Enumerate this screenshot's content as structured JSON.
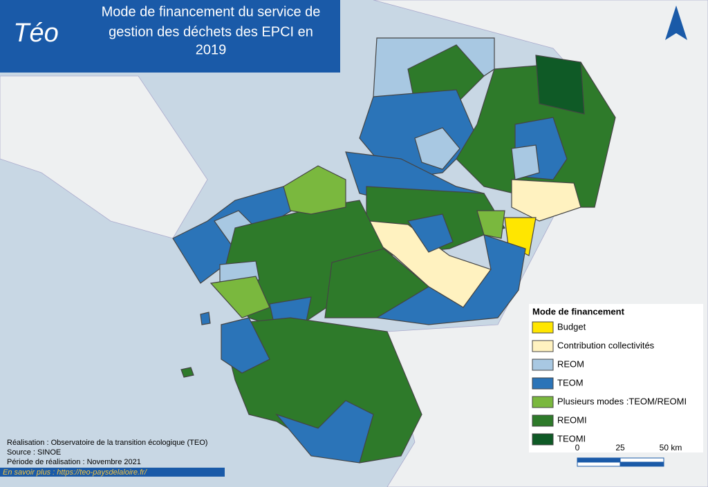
{
  "header": {
    "logo": "Téo",
    "title_lines": [
      "Mode de financement du service de",
      "gestion des déchets des EPCI en",
      "2019"
    ]
  },
  "legend": {
    "title": "Mode de financement",
    "items": [
      {
        "label": "Budget",
        "color": "#ffe600"
      },
      {
        "label": "Contribution collectivités",
        "color": "#fff2c0"
      },
      {
        "label": "REOM",
        "color": "#a8c8e2"
      },
      {
        "label": "TEOM",
        "color": "#2b74b8"
      },
      {
        "label": "Plusieurs modes :TEOM/REOMI",
        "color": "#7ab83e"
      },
      {
        "label": "REOMI",
        "color": "#2e7a2a"
      },
      {
        "label": "TEOMI",
        "color": "#0f5a26"
      }
    ]
  },
  "scale": {
    "labels": [
      "0",
      "25",
      "50 km"
    ]
  },
  "credits": [
    "Réalisation : Observatoire de la transition écologique (TEO)",
    "Source : SINOE",
    "Période de réalisation : Novembre 2021"
  ],
  "link": "En savoir plus : https://teo-paysdelaloire.fr/"
}
